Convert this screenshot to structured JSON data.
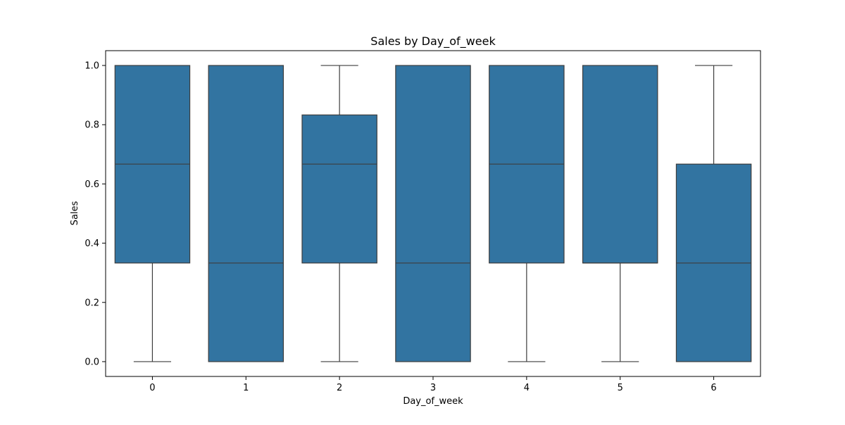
{
  "chart_data": {
    "type": "box",
    "title": "Sales by Day_of_week",
    "xlabel": "Day_of_week",
    "ylabel": "Sales",
    "categories": [
      "0",
      "1",
      "2",
      "3",
      "4",
      "5",
      "6"
    ],
    "ylim": [
      -0.05,
      1.05
    ],
    "yticks": [
      0.0,
      0.2,
      0.4,
      0.6,
      0.8,
      1.0
    ],
    "ytick_labels": [
      "0.0",
      "0.2",
      "0.4",
      "0.6",
      "0.8",
      "1.0"
    ],
    "boxes": [
      {
        "category": "0",
        "whisker_low": 0.0,
        "q1": 0.333,
        "median": 0.667,
        "q3": 1.0,
        "whisker_high": 1.0
      },
      {
        "category": "1",
        "whisker_low": 0.0,
        "q1": 0.0,
        "median": 0.333,
        "q3": 1.0,
        "whisker_high": 1.0
      },
      {
        "category": "2",
        "whisker_low": 0.0,
        "q1": 0.333,
        "median": 0.667,
        "q3": 0.833,
        "whisker_high": 1.0
      },
      {
        "category": "3",
        "whisker_low": 0.0,
        "q1": 0.0,
        "median": 0.333,
        "q3": 1.0,
        "whisker_high": 1.0
      },
      {
        "category": "4",
        "whisker_low": 0.0,
        "q1": 0.333,
        "median": 0.667,
        "q3": 1.0,
        "whisker_high": 1.0
      },
      {
        "category": "5",
        "whisker_low": 0.0,
        "q1": 0.333,
        "median": 0.333,
        "q3": 1.0,
        "whisker_high": 1.0
      },
      {
        "category": "6",
        "whisker_low": 0.0,
        "q1": 0.0,
        "median": 0.333,
        "q3": 0.667,
        "whisker_high": 1.0
      }
    ],
    "grid": false,
    "colors": {
      "box_fill": "#3274a1",
      "line": "#3d3d3d",
      "axes": "#000000"
    }
  }
}
